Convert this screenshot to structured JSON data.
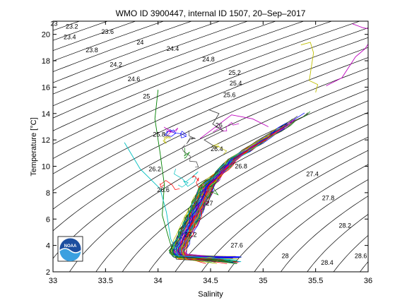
{
  "chart_data": {
    "type": "line",
    "title": "WMO ID 3900447, internal ID 1507, 20–Sep–2017",
    "xlabel": "Salinity",
    "ylabel": "Temperature [°C]",
    "xlim": [
      33,
      36
    ],
    "ylim": [
      2,
      21
    ],
    "xticks": [
      "33",
      "33.5",
      "34",
      "34.5",
      "35",
      "35.5",
      "36"
    ],
    "yticks": [
      "2",
      "4",
      "6",
      "8",
      "10",
      "12",
      "14",
      "16",
      "18",
      "20"
    ],
    "grid": false,
    "logo": "NOAA",
    "density_labels": [
      {
        "text": "23",
        "s": 33.01,
        "t": 20.8
      },
      {
        "text": "23.2",
        "s": 33.18,
        "t": 20.6
      },
      {
        "text": "23.4",
        "s": 33.16,
        "t": 19.8
      },
      {
        "text": "23.6",
        "s": 33.52,
        "t": 20.2
      },
      {
        "text": "23.8",
        "s": 33.37,
        "t": 18.8
      },
      {
        "text": "24",
        "s": 33.83,
        "t": 19.4
      },
      {
        "text": "24.2",
        "s": 33.6,
        "t": 17.7
      },
      {
        "text": "24.4",
        "s": 34.14,
        "t": 18.9
      },
      {
        "text": "24.6",
        "s": 33.77,
        "t": 16.6
      },
      {
        "text": "24.8",
        "s": 34.48,
        "t": 18.1
      },
      {
        "text": "25",
        "s": 33.89,
        "t": 15.3
      },
      {
        "text": "25.2",
        "s": 34.73,
        "t": 17.1
      },
      {
        "text": "25.4",
        "s": 34.74,
        "t": 16.3
      },
      {
        "text": "25.6",
        "s": 34.68,
        "t": 15.4
      },
      {
        "text": "25.8",
        "s": 34.01,
        "t": 12.4
      },
      {
        "text": "26",
        "s": 34.58,
        "t": 13.1
      },
      {
        "text": "26.2",
        "s": 33.97,
        "t": 9.8
      },
      {
        "text": "26.4",
        "s": 34.56,
        "t": 11.3
      },
      {
        "text": "26.6",
        "s": 34.05,
        "t": 8.2
      },
      {
        "text": "26.8",
        "s": 34.79,
        "t": 10.0
      },
      {
        "text": "27",
        "s": 34.49,
        "t": 7.2
      },
      {
        "text": "27.2",
        "s": 34.31,
        "t": 4.8
      },
      {
        "text": "27.4",
        "s": 35.47,
        "t": 9.4
      },
      {
        "text": "27.6",
        "s": 34.75,
        "t": 4.0
      },
      {
        "text": "27.8",
        "s": 35.62,
        "t": 7.6
      },
      {
        "text": "28",
        "s": 35.21,
        "t": 3.2
      },
      {
        "text": "28.2",
        "s": 35.78,
        "t": 5.5
      },
      {
        "text": "28.4",
        "s": 35.61,
        "t": 2.7
      },
      {
        "text": "28.6",
        "s": 35.93,
        "t": 3.2
      }
    ],
    "profile_colors": [
      "#0000ff",
      "#008000",
      "#ff0000",
      "#00bfbf",
      "#bf00bf",
      "#bfbf00",
      "#404040"
    ],
    "profile_highlights": [
      {
        "color": "#bfbf00",
        "points": [
          [
            35.36,
            19.2
          ],
          [
            35.45,
            19.4
          ],
          [
            35.48,
            18.6
          ],
          [
            35.44,
            16.5
          ],
          [
            35.52,
            16.2
          ],
          [
            35.5,
            15.6
          ]
        ]
      },
      {
        "color": "#bf00bf",
        "points": [
          [
            35.85,
            20.8
          ],
          [
            35.95,
            20.5
          ],
          [
            36.02,
            20.4
          ]
        ]
      },
      {
        "color": "#bf00bf",
        "points": [
          [
            35.6,
            16.1
          ],
          [
            35.75,
            16.7
          ],
          [
            35.88,
            18.3
          ],
          [
            35.97,
            18.9
          ],
          [
            36.02,
            19.5
          ]
        ]
      },
      {
        "color": "#008000",
        "points": [
          [
            34.0,
            15.8
          ],
          [
            33.97,
            13.6
          ],
          [
            34.02,
            11.0
          ],
          [
            34.06,
            8.6
          ],
          [
            34.04,
            6.3
          ],
          [
            34.1,
            4.6
          ],
          [
            34.15,
            3.3
          ]
        ]
      },
      {
        "color": "#00bfbf",
        "points": [
          [
            33.68,
            11.8
          ],
          [
            33.83,
            9.8
          ],
          [
            34.02,
            8.3
          ],
          [
            34.08,
            6.5
          ],
          [
            34.12,
            4.5
          ],
          [
            34.2,
            3.1
          ]
        ]
      },
      {
        "color": "#404040",
        "points": [
          [
            34.48,
            14.3
          ],
          [
            34.58,
            14.0
          ],
          [
            34.52,
            13.2
          ],
          [
            34.62,
            12.7
          ],
          [
            34.44,
            12.0
          ],
          [
            34.56,
            11.4
          ]
        ]
      },
      {
        "color": "#bf00bf",
        "points": [
          [
            34.4,
            12.1
          ],
          [
            34.7,
            13.9
          ],
          [
            34.9,
            13.6
          ],
          [
            35.05,
            13.0
          ]
        ]
      }
    ]
  }
}
